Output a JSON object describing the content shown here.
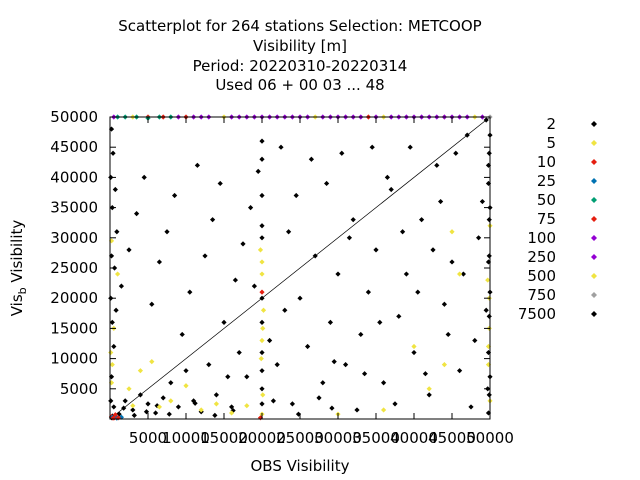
{
  "chart_data": {
    "type": "scatter",
    "title_lines": [
      "Scatterplot for  264 stations Selection: METCOOP",
      "Visibility [m]",
      "Period: 20220310-20220314",
      "Used  06 + 00 03 ... 48"
    ],
    "xlabel": "OBS Visibility",
    "ylabel_main": "Vis",
    "ylabel_sub": "b",
    "ylabel_rest": " Visibility",
    "xlim": [
      0,
      50000
    ],
    "ylim": [
      0,
      50000
    ],
    "x_ticks": [
      5000,
      10000,
      15000,
      20000,
      25000,
      30000,
      35000,
      40000,
      45000,
      50000
    ],
    "x_tick_labels": [
      "5000",
      "10000",
      "15000",
      "20000",
      "25000",
      "30000",
      "35000",
      "40000",
      "45000",
      "50000"
    ],
    "y_ticks": [
      5000,
      10000,
      15000,
      20000,
      25000,
      30000,
      35000,
      40000,
      45000,
      50000
    ],
    "y_tick_labels": [
      "5000",
      "10000",
      "15000",
      "20000",
      "25000",
      "30000",
      "35000",
      "40000",
      "45000",
      "50000"
    ],
    "diagonal": true,
    "grid": false,
    "legend_position": "right",
    "legend": [
      {
        "label": "2",
        "color": "#000000"
      },
      {
        "label": "5",
        "color": "#f0e442"
      },
      {
        "label": "10",
        "color": "#e51e10"
      },
      {
        "label": "25",
        "color": "#0072b2"
      },
      {
        "label": "50",
        "color": "#009e73"
      },
      {
        "label": "75",
        "color": "#e51e10"
      },
      {
        "label": "100",
        "color": "#9400d3"
      },
      {
        "label": "250",
        "color": "#9400d3"
      },
      {
        "label": "500",
        "color": "#f0e442"
      },
      {
        "label": "750",
        "color": "#a0a0a0"
      },
      {
        "label": "7500",
        "color": "#000000"
      }
    ],
    "series": [
      {
        "legend_index": 0,
        "points": [
          [
            500,
            2000
          ],
          [
            1200,
            800
          ],
          [
            2000,
            3000
          ],
          [
            3000,
            1500
          ],
          [
            4000,
            4000
          ],
          [
            5000,
            2500
          ],
          [
            6000,
            1000
          ],
          [
            7000,
            3500
          ],
          [
            8000,
            6000
          ],
          [
            9000,
            2000
          ],
          [
            10000,
            8000
          ],
          [
            11000,
            3000
          ],
          [
            12000,
            1200
          ],
          [
            13000,
            9000
          ],
          [
            14000,
            4000
          ],
          [
            15000,
            16000
          ],
          [
            16000,
            2000
          ],
          [
            17000,
            11000
          ],
          [
            18000,
            7000
          ],
          [
            19000,
            22000
          ],
          [
            20000,
            5000
          ],
          [
            21000,
            13000
          ],
          [
            22000,
            9000
          ],
          [
            23000,
            18000
          ],
          [
            24000,
            2500
          ],
          [
            25000,
            20000
          ],
          [
            26000,
            12000
          ],
          [
            27000,
            27000
          ],
          [
            28000,
            6000
          ],
          [
            29000,
            16000
          ],
          [
            30000,
            24000
          ],
          [
            31000,
            9000
          ],
          [
            32000,
            33000
          ],
          [
            33000,
            14000
          ],
          [
            34000,
            21000
          ],
          [
            35000,
            28000
          ],
          [
            36000,
            6000
          ],
          [
            37000,
            38000
          ],
          [
            38000,
            17000
          ],
          [
            39000,
            24000
          ],
          [
            40000,
            11000
          ],
          [
            41000,
            33000
          ],
          [
            42000,
            4000
          ],
          [
            43000,
            42000
          ],
          [
            44000,
            19000
          ],
          [
            45000,
            26000
          ],
          [
            46000,
            8000
          ],
          [
            47000,
            47000
          ],
          [
            48000,
            13000
          ],
          [
            49000,
            36000
          ],
          [
            500,
            12000
          ],
          [
            800,
            18000
          ],
          [
            600,
            25000
          ],
          [
            900,
            31000
          ],
          [
            700,
            38000
          ],
          [
            400,
            44000
          ],
          [
            1500,
            22000
          ],
          [
            2500,
            28000
          ],
          [
            3500,
            34000
          ],
          [
            4500,
            40000
          ],
          [
            5500,
            19000
          ],
          [
            6500,
            26000
          ],
          [
            7500,
            31000
          ],
          [
            8500,
            37000
          ],
          [
            9500,
            14000
          ],
          [
            10500,
            21000
          ],
          [
            11500,
            42000
          ],
          [
            12500,
            27000
          ],
          [
            13500,
            33000
          ],
          [
            14500,
            39000
          ],
          [
            15500,
            7000
          ],
          [
            16500,
            23000
          ],
          [
            17500,
            29000
          ],
          [
            18500,
            35000
          ],
          [
            19500,
            41000
          ],
          [
            21500,
            3000
          ],
          [
            22500,
            45000
          ],
          [
            23500,
            31000
          ],
          [
            24500,
            37000
          ],
          [
            26500,
            43000
          ],
          [
            27500,
            3500
          ],
          [
            28500,
            39000
          ],
          [
            29500,
            9500
          ],
          [
            30500,
            44000
          ],
          [
            31500,
            30000
          ],
          [
            32500,
            1500
          ],
          [
            33500,
            7500
          ],
          [
            34500,
            45000
          ],
          [
            35500,
            16000
          ],
          [
            36500,
            40000
          ],
          [
            37500,
            2500
          ],
          [
            38500,
            31000
          ],
          [
            39500,
            45000
          ],
          [
            40500,
            21000
          ],
          [
            41500,
            7500
          ],
          [
            42500,
            28000
          ],
          [
            43500,
            36000
          ],
          [
            44500,
            14000
          ],
          [
            45500,
            44000
          ],
          [
            46500,
            24000
          ],
          [
            47500,
            2000
          ],
          [
            48500,
            30000
          ],
          [
            49500,
            18000
          ],
          [
            49800,
            42000
          ],
          [
            49700,
            5000
          ],
          [
            49900,
            27000
          ],
          [
            20000,
            20000
          ],
          [
            20000,
            32000
          ],
          [
            20000,
            8000
          ],
          [
            20000,
            46000
          ],
          [
            200,
            200
          ],
          [
            300,
            500
          ],
          [
            800,
            300
          ],
          [
            1800,
            1800
          ],
          [
            3200,
            600
          ],
          [
            4800,
            1200
          ],
          [
            6200,
            2200
          ],
          [
            7800,
            800
          ],
          [
            11200,
            2600
          ],
          [
            13800,
            600
          ],
          [
            16200,
            1400
          ],
          [
            24800,
            800
          ],
          [
            29200,
            1800
          ]
        ]
      },
      {
        "legend_index": 1,
        "points": [
          [
            300,
            9000
          ],
          [
            500,
            15000
          ],
          [
            200,
            29500
          ],
          [
            1000,
            24000
          ],
          [
            2500,
            5000
          ],
          [
            3000,
            2200
          ],
          [
            4000,
            8000
          ],
          [
            5500,
            9500
          ],
          [
            6500,
            2000
          ],
          [
            8000,
            3000
          ],
          [
            10000,
            5500
          ],
          [
            12000,
            1500
          ],
          [
            14000,
            2500
          ],
          [
            16000,
            1000
          ],
          [
            18000,
            2200
          ],
          [
            19800,
            28000
          ],
          [
            20000,
            26000
          ],
          [
            20200,
            18000
          ],
          [
            20000,
            13000
          ],
          [
            19900,
            10000
          ],
          [
            20100,
            4000
          ],
          [
            20000,
            800
          ],
          [
            40000,
            12000
          ],
          [
            42000,
            5000
          ],
          [
            44000,
            9000
          ],
          [
            45000,
            31000
          ],
          [
            46000,
            24000
          ],
          [
            49800,
            9000
          ],
          [
            49900,
            15000
          ],
          [
            49700,
            23000
          ],
          [
            50000,
            3000
          ],
          [
            30000,
            800
          ],
          [
            36000,
            1500
          ],
          [
            3000,
            50000
          ],
          [
            15000,
            50000
          ],
          [
            27000,
            50000
          ],
          [
            36000,
            50000
          ],
          [
            44000,
            50000
          ],
          [
            48000,
            50000
          ]
        ]
      },
      {
        "legend_index": 2,
        "points": [
          [
            200,
            400
          ],
          [
            600,
            200
          ],
          [
            20000,
            21000
          ],
          [
            19800,
            200
          ],
          [
            5000,
            50000
          ],
          [
            10000,
            50000
          ],
          [
            34000,
            50000
          ],
          [
            700,
            700
          ]
        ]
      },
      {
        "legend_index": 3,
        "points": [
          [
            300,
            300
          ],
          [
            900,
            150
          ],
          [
            1500,
            300
          ]
        ]
      },
      {
        "legend_index": 4,
        "points": [
          [
            1000,
            50000
          ],
          [
            2000,
            50000
          ],
          [
            3500,
            50000
          ],
          [
            5000,
            49800
          ],
          [
            6500,
            50000
          ],
          [
            8000,
            50000
          ]
        ]
      },
      {
        "legend_index": 5,
        "points": [
          [
            400,
            150
          ],
          [
            1100,
            200
          ],
          [
            7000,
            50000
          ]
        ]
      },
      {
        "legend_index": 6,
        "points": [
          [
            9000,
            50000
          ],
          [
            11000,
            50000
          ],
          [
            12000,
            50000
          ],
          [
            13000,
            50000
          ],
          [
            16000,
            50000
          ],
          [
            17000,
            50000
          ],
          [
            18000,
            50000
          ],
          [
            21000,
            50000
          ],
          [
            22000,
            50000
          ],
          [
            23000,
            50000
          ],
          [
            24000,
            50000
          ],
          [
            25000,
            50000
          ],
          [
            26000,
            50000
          ],
          [
            28000,
            50000
          ],
          [
            29000,
            50000
          ],
          [
            30000,
            50000
          ],
          [
            31000,
            50000
          ],
          [
            32000,
            50000
          ],
          [
            33000,
            50000
          ],
          [
            35000,
            50000
          ],
          [
            37000,
            50000
          ],
          [
            38000,
            50000
          ],
          [
            39000,
            50000
          ],
          [
            40000,
            50000
          ],
          [
            41000,
            50000
          ],
          [
            42000,
            50000
          ],
          [
            43000,
            50000
          ],
          [
            45000,
            50000
          ],
          [
            46000,
            50000
          ],
          [
            47000,
            50000
          ],
          [
            49000,
            50000
          ]
        ]
      },
      {
        "legend_index": 7,
        "points": [
          [
            500,
            50000
          ],
          [
            19000,
            50000
          ],
          [
            20000,
            50000
          ],
          [
            44000,
            50000
          ]
        ]
      },
      {
        "legend_index": 8,
        "points": [
          [
            200,
            6000
          ],
          [
            100,
            11000
          ],
          [
            49900,
            20000
          ],
          [
            49800,
            12000
          ],
          [
            50000,
            32000
          ],
          [
            20000,
            24000
          ],
          [
            20100,
            15000
          ]
        ]
      },
      {
        "legend_index": 9,
        "points": [
          [
            50000,
            50000
          ]
        ]
      },
      {
        "legend_index": 10,
        "points": [
          [
            49500,
            49500
          ],
          [
            50000,
            47000
          ],
          [
            49900,
            44000
          ],
          [
            49800,
            39000
          ],
          [
            50000,
            35000
          ],
          [
            49900,
            33000
          ],
          [
            49800,
            26000
          ],
          [
            50000,
            21000
          ],
          [
            49900,
            17000
          ],
          [
            49800,
            11000
          ],
          [
            50000,
            7000
          ],
          [
            49900,
            4000
          ],
          [
            49800,
            1000
          ],
          [
            200,
            48000
          ],
          [
            100,
            40000
          ],
          [
            300,
            35000
          ],
          [
            200,
            27000
          ],
          [
            100,
            20000
          ],
          [
            300,
            16000
          ],
          [
            200,
            7000
          ],
          [
            100,
            3000
          ],
          [
            20000,
            43000
          ],
          [
            20000,
            37000
          ],
          [
            20000,
            30000
          ],
          [
            20000,
            16000
          ],
          [
            20000,
            11000
          ],
          [
            20000,
            2500
          ]
        ]
      }
    ]
  }
}
